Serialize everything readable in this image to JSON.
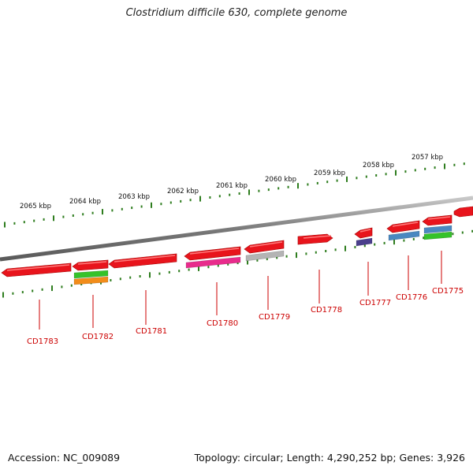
{
  "title": "Clostridium difficile 630, complete genome",
  "footer": {
    "accession": "Accession: NC_009089",
    "summary": "Topology: circular; Length: 4,290,252 bp; Genes: 3,926"
  },
  "colors": {
    "backbone": "#7a7a7a",
    "tick": "#2e7d1e",
    "gene_label": "#cc0000"
  },
  "kbp_labels": [
    "2065 kbp",
    "2064 kbp",
    "2063 kbp",
    "2062 kbp",
    "2061 kbp",
    "2060 kbp",
    "2059 kbp",
    "2058 kbp",
    "2057 kbp"
  ],
  "genes": [
    {
      "label": "CD1783",
      "strand": "minus",
      "color": "#e8141c",
      "tracks": []
    },
    {
      "label": "CD1782",
      "strand": "minus",
      "color": "#e8141c",
      "tracks": [
        "#35c22a",
        "#f28c1a"
      ]
    },
    {
      "label": "CD1781",
      "strand": "minus",
      "color": "#e8141c",
      "tracks": []
    },
    {
      "label": "CD1780",
      "strand": "minus",
      "color": "#e8141c",
      "tracks": [
        "#e82c8c"
      ]
    },
    {
      "label": "CD1779",
      "strand": "minus",
      "color": "#e8141c",
      "tracks": [
        "#b4b4b4"
      ]
    },
    {
      "label": "CD1778",
      "strand": "plus",
      "color": "#e8141c",
      "tracks": []
    },
    {
      "label": "CD1777",
      "strand": "minus",
      "color": "#e8141c",
      "tracks": [
        "#4a3f8c"
      ]
    },
    {
      "label": "CD1776",
      "strand": "minus",
      "color": "#e8141c",
      "tracks": [
        "#4a88c0"
      ]
    },
    {
      "label": "CD1775",
      "strand": "minus",
      "color": "#e8141c",
      "tracks": [
        "#4a88c0",
        "#35c22a"
      ]
    }
  ]
}
